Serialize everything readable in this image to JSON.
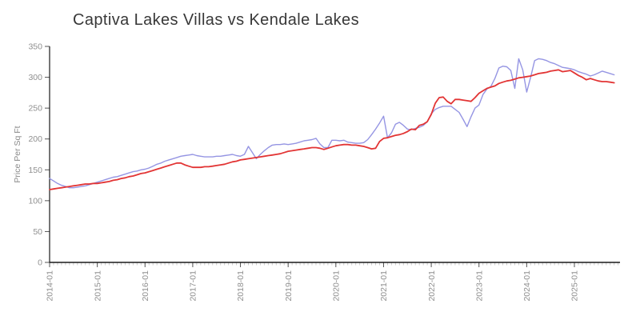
{
  "title": "Captiva Lakes Villas vs Kendale Lakes",
  "chart_data": {
    "type": "line",
    "title": "Captiva Lakes Villas vs Kendale Lakes",
    "xlabel": "",
    "ylabel": "Price Per Sq Ft",
    "x_start": "2014-01",
    "x_end": "2025-11",
    "x_freq": "monthly",
    "x_tick_labels": [
      "2014-01",
      "2015-01",
      "2016-01",
      "2017-01",
      "2018-01",
      "2019-01",
      "2020-01",
      "2021-01",
      "2022-01",
      "2023-01",
      "2024-01",
      "2025-01"
    ],
    "y_ticks": [
      0,
      50,
      100,
      150,
      200,
      250,
      300,
      350
    ],
    "ylim": [
      0,
      350
    ],
    "grid": false,
    "legend": "none",
    "series": [
      {
        "name": "Captiva Lakes Villas",
        "color": "#9595e3",
        "values": [
          136,
          132,
          128,
          125,
          123,
          121,
          121,
          122,
          123,
          124,
          126,
          128,
          130,
          132,
          134,
          136,
          138,
          139,
          141,
          143,
          145,
          147,
          148,
          150,
          151,
          153,
          156,
          159,
          161,
          164,
          166,
          168,
          170,
          172,
          173,
          174,
          175,
          173,
          172,
          171,
          171,
          171,
          172,
          172,
          173,
          174,
          175,
          173,
          172,
          175,
          188,
          178,
          168,
          175,
          181,
          186,
          190,
          191,
          191,
          192,
          191,
          192,
          193,
          195,
          197,
          198,
          199,
          201,
          192,
          186,
          186,
          198,
          198,
          197,
          198,
          195,
          194,
          193,
          193,
          194,
          199,
          207,
          216,
          226,
          237,
          202,
          210,
          224,
          227,
          222,
          216,
          215,
          217,
          219,
          222,
          228,
          241,
          248,
          251,
          253,
          253,
          253,
          248,
          243,
          232,
          220,
          236,
          250,
          255,
          272,
          281,
          285,
          298,
          315,
          318,
          317,
          311,
          282,
          330,
          312,
          276,
          300,
          327,
          330,
          329,
          327,
          324,
          322,
          319,
          316,
          315,
          314,
          312,
          309,
          307,
          305,
          302,
          304,
          307,
          310,
          308,
          306,
          304
        ]
      },
      {
        "name": "Kendale Lakes",
        "color": "#e23434",
        "values": [
          118,
          119,
          120,
          121,
          122,
          123,
          124,
          125,
          126,
          127,
          127,
          128,
          128,
          129,
          130,
          131,
          133,
          134,
          136,
          137,
          139,
          140,
          142,
          144,
          145,
          147,
          149,
          151,
          153,
          155,
          157,
          159,
          161,
          161,
          158,
          156,
          154,
          154,
          154,
          155,
          155,
          156,
          157,
          158,
          159,
          161,
          163,
          164,
          166,
          167,
          168,
          169,
          170,
          171,
          172,
          173,
          174,
          175,
          176,
          178,
          180,
          181,
          182,
          183,
          184,
          185,
          186,
          186,
          185,
          183,
          185,
          187,
          189,
          190,
          191,
          191,
          190,
          190,
          189,
          188,
          186,
          184,
          185,
          196,
          201,
          202,
          204,
          206,
          207,
          209,
          212,
          216,
          215,
          222,
          224,
          228,
          240,
          258,
          267,
          268,
          261,
          257,
          264,
          264,
          263,
          262,
          261,
          267,
          274,
          278,
          282,
          284,
          286,
          290,
          292,
          294,
          295,
          297,
          299,
          300,
          301,
          302,
          304,
          306,
          307,
          308,
          310,
          311,
          312,
          309,
          310,
          311,
          307,
          303,
          300,
          296,
          298,
          296,
          294,
          293,
          293,
          292,
          291
        ]
      }
    ]
  }
}
